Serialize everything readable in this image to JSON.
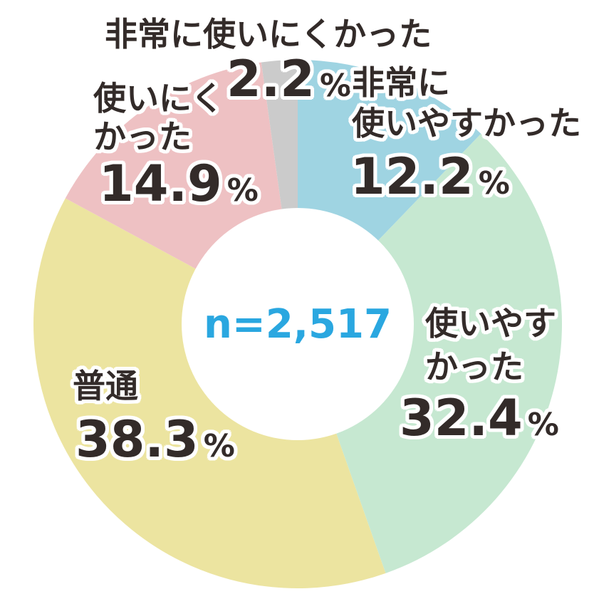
{
  "chart_data": {
    "type": "pie",
    "donut": true,
    "center_label": "n=2,517",
    "start_angle": "top (12 o'clock), clockwise",
    "slices": [
      {
        "id": "very-easy",
        "label": "非常に使いやすかった",
        "label_lines": [
          "非常に",
          "使いやすかった"
        ],
        "value": 12.2,
        "value_text": "12.2",
        "unit": "%",
        "color": "#9fd4e2"
      },
      {
        "id": "easy",
        "label": "使いやすかった",
        "label_lines": [
          "使いやす",
          "かった"
        ],
        "value": 32.4,
        "value_text": "32.4",
        "unit": "%",
        "color": "#c6e8d1"
      },
      {
        "id": "normal",
        "label": "普通",
        "label_lines": [
          "普通"
        ],
        "value": 38.3,
        "value_text": "38.3",
        "unit": "%",
        "color": "#ece4a0"
      },
      {
        "id": "hard",
        "label": "使いにくかった",
        "label_lines": [
          "使いにく",
          "かった"
        ],
        "value": 14.9,
        "value_text": "14.9",
        "unit": "%",
        "color": "#eec1c3"
      },
      {
        "id": "very-hard",
        "label": "非常に使いにくかった",
        "label_lines": [
          "非常に使いにくかった"
        ],
        "value": 2.2,
        "value_text": "2.2",
        "unit": "%",
        "color": "#cbcbcb"
      }
    ],
    "colors": {
      "center_text": "#2aa7e0",
      "label_text": "#332b29",
      "background": "#ffffff"
    },
    "geometry": {
      "note": "donut hole is white, labels overlap slices"
    }
  }
}
